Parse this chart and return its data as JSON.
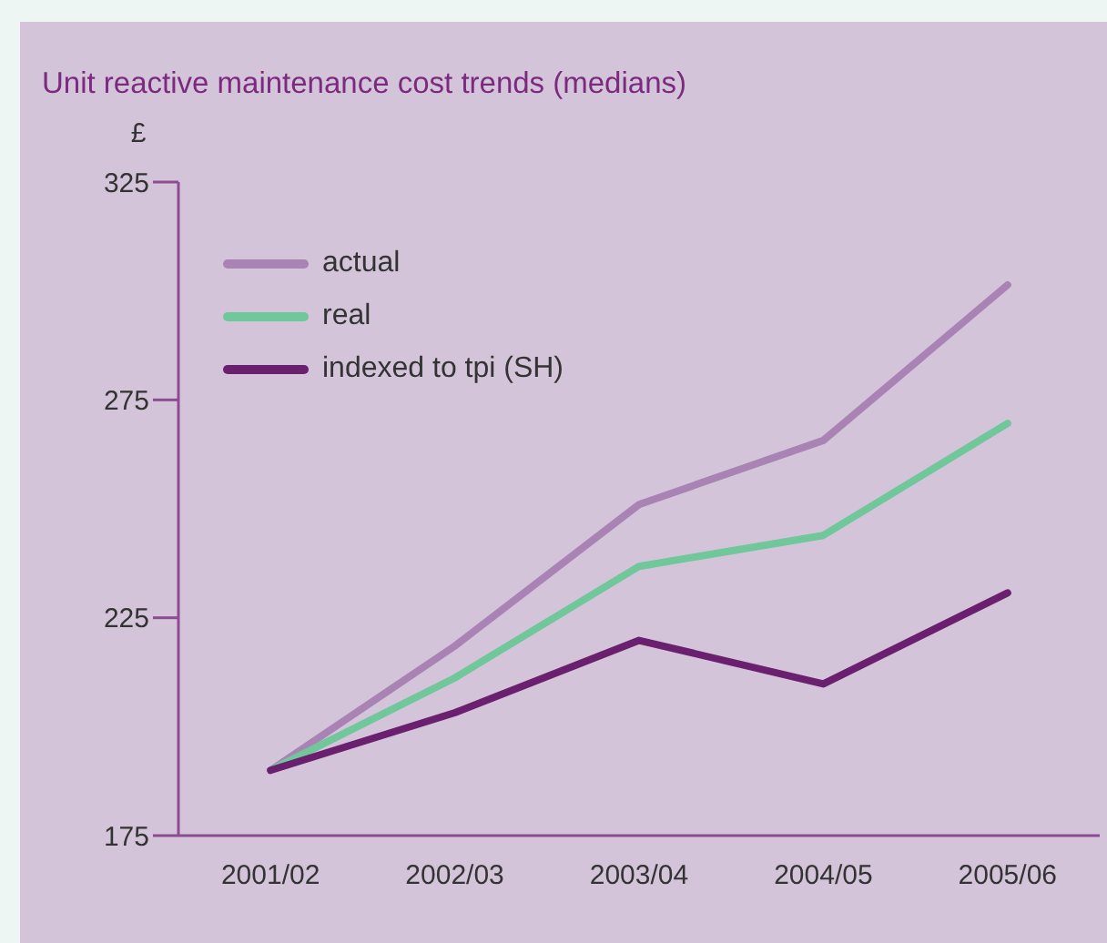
{
  "chart_data": {
    "type": "line",
    "title": "Unit reactive maintenance cost trends (medians)",
    "ylabel": "£",
    "categories": [
      "2001/02",
      "2002/03",
      "2003/04",
      "2004/05",
      "2005/06"
    ],
    "series": [
      {
        "name": "actual",
        "color": "#a883b4",
        "values": [
          190,
          218.5,
          251,
          265.7,
          301.4
        ]
      },
      {
        "name": "real",
        "color": "#6fc79a",
        "values": [
          190,
          211.2,
          236.8,
          243.9,
          269.6
        ]
      },
      {
        "name": "indexed to tpi (SH)",
        "color": "#6b1f6f",
        "values": [
          190,
          203.2,
          219.8,
          209.8,
          230.7
        ]
      }
    ],
    "ylim": [
      175,
      325
    ],
    "yticks": [
      175,
      225,
      275,
      325
    ],
    "grid": false,
    "legend": "top left",
    "marker": "none",
    "line_style": "solid"
  }
}
